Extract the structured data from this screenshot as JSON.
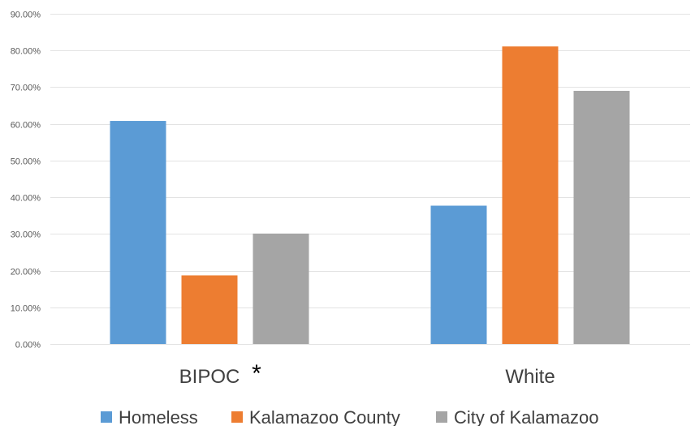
{
  "chart_data": {
    "type": "bar",
    "title": "",
    "xlabel": "",
    "ylabel": "",
    "categories": [
      "BIPOC",
      "White"
    ],
    "category_annotations": [
      "*",
      ""
    ],
    "series": [
      {
        "name": "Homeless",
        "color": "#5b9bd5",
        "values": [
          0.608,
          0.377
        ]
      },
      {
        "name": "Kalamazoo County",
        "color": "#ed7d31",
        "values": [
          0.187,
          0.811
        ]
      },
      {
        "name": "City of Kalamazoo",
        "color": "#a5a5a5",
        "values": [
          0.301,
          0.69
        ]
      }
    ],
    "ylim": [
      0,
      0.9
    ],
    "yticks": [
      0,
      0.1,
      0.2,
      0.3,
      0.4,
      0.5,
      0.6,
      0.7,
      0.8,
      0.9
    ],
    "ytick_labels": [
      "0.00%",
      "10.00%",
      "20.00%",
      "30.00%",
      "40.00%",
      "50.00%",
      "60.00%",
      "70.00%",
      "80.00%",
      "90.00%"
    ],
    "grid": true,
    "legend_position": "bottom"
  }
}
